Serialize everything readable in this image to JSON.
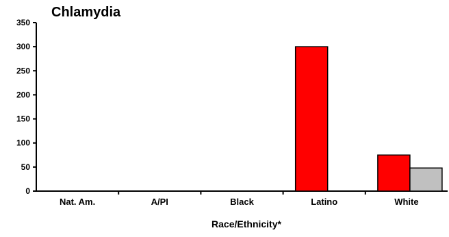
{
  "chart_data": {
    "type": "bar",
    "title": "Chlamydia",
    "xlabel": "Race/Ethnicity*",
    "ylabel": "",
    "ylim": [
      0,
      350
    ],
    "yticks": [
      0,
      50,
      100,
      150,
      200,
      250,
      300,
      350
    ],
    "categories": [
      "Nat. Am.",
      "A/PI",
      "Black",
      "Latino",
      "White"
    ],
    "series": [
      {
        "color": "#ff0000",
        "values": [
          null,
          null,
          null,
          300,
          75
        ]
      },
      {
        "color": "#c0c0c0",
        "values": [
          null,
          null,
          null,
          null,
          48
        ]
      }
    ],
    "grid": false,
    "legend": "none"
  }
}
